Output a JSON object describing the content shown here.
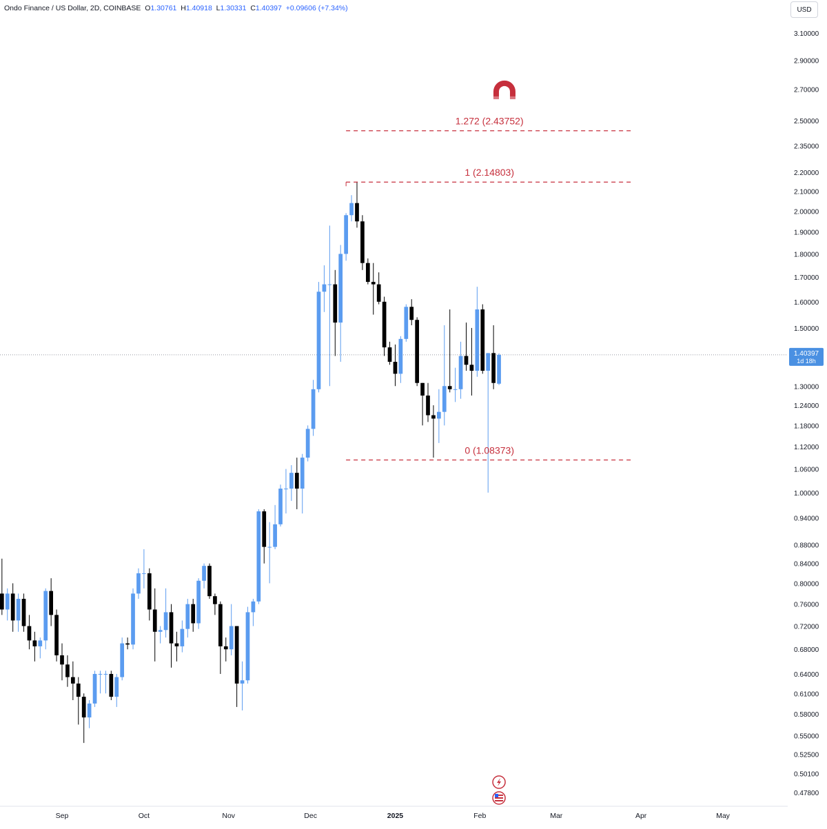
{
  "header": {
    "symbol": "Ondo Finance / US Dollar, 2D, COINBASE",
    "o_label": "O",
    "o_value": "1.30761",
    "h_label": "H",
    "h_value": "1.40918",
    "l_label": "L",
    "l_value": "1.30331",
    "c_label": "C",
    "c_value": "1.40397",
    "change": "+0.09606 (+7.34%)"
  },
  "currency": "USD",
  "colors": {
    "up": "#5b9cf0",
    "down": "#000000",
    "fib": "#c62f3c",
    "price_label_bg": "#4a90e2",
    "axis_text": "#131722",
    "crosshair": "#9598a1"
  },
  "icons": [
    "magnet-icon",
    "lightning-icon",
    "us-flag-icon"
  ],
  "chart_data": {
    "type": "candlestick",
    "scale": "log",
    "interval_days": 2,
    "y_ticks": [
      "3.10000",
      "2.90000",
      "2.70000",
      "2.50000",
      "2.35000",
      "2.20000",
      "2.10000",
      "2.00000",
      "1.90000",
      "1.80000",
      "1.70000",
      "1.60000",
      "1.50000",
      "1.30000",
      "1.24000",
      "1.18000",
      "1.12000",
      "1.06000",
      "1.00000",
      "0.94000",
      "0.88000",
      "0.84000",
      "0.80000",
      "0.76000",
      "0.72000",
      "0.68000",
      "0.64000",
      "0.61000",
      "0.58000",
      "0.55000",
      "0.52500",
      "0.50100",
      "0.47800"
    ],
    "x_ticks": [
      {
        "date": "2024-09-01",
        "label": "Sep"
      },
      {
        "date": "2024-10-01",
        "label": "Oct"
      },
      {
        "date": "2024-11-01",
        "label": "Nov"
      },
      {
        "date": "2024-12-01",
        "label": "Dec"
      },
      {
        "date": "2025-01-01",
        "label": "2025"
      },
      {
        "date": "2025-02-01",
        "label": "Feb"
      },
      {
        "date": "2025-03-01",
        "label": "Mar"
      },
      {
        "date": "2025-04-01",
        "label": "Apr"
      },
      {
        "date": "2025-05-01",
        "label": "May"
      }
    ],
    "current_price": {
      "label": "1.40397",
      "countdown": "1d 18h",
      "value": 1.40397
    },
    "fib_levels": [
      {
        "label": "1.272 (2.43752)",
        "value": 2.43752
      },
      {
        "label": "1 (2.14803)",
        "value": 2.14803
      },
      {
        "label": "0 (1.08373)",
        "value": 1.08373
      }
    ],
    "fib_start_date": "2024-12-14",
    "fib_end_date": "2025-03-29",
    "magnet_date": "2025-02-10",
    "magnet_value": 2.68,
    "candles": [
      {
        "d": "2024-08-10",
        "o": 0.78,
        "h": 0.85,
        "l": 0.74,
        "c": 0.75
      },
      {
        "d": "2024-08-12",
        "o": 0.75,
        "h": 0.79,
        "l": 0.73,
        "c": 0.78
      },
      {
        "d": "2024-08-14",
        "o": 0.78,
        "h": 0.8,
        "l": 0.71,
        "c": 0.73
      },
      {
        "d": "2024-08-16",
        "o": 0.73,
        "h": 0.78,
        "l": 0.71,
        "c": 0.77
      },
      {
        "d": "2024-08-18",
        "o": 0.77,
        "h": 0.78,
        "l": 0.71,
        "c": 0.72
      },
      {
        "d": "2024-08-20",
        "o": 0.72,
        "h": 0.74,
        "l": 0.68,
        "c": 0.695
      },
      {
        "d": "2024-08-22",
        "o": 0.695,
        "h": 0.71,
        "l": 0.66,
        "c": 0.685
      },
      {
        "d": "2024-08-24",
        "o": 0.685,
        "h": 0.7,
        "l": 0.665,
        "c": 0.695
      },
      {
        "d": "2024-08-26",
        "o": 0.695,
        "h": 0.79,
        "l": 0.68,
        "c": 0.785
      },
      {
        "d": "2024-08-28",
        "o": 0.785,
        "h": 0.81,
        "l": 0.72,
        "c": 0.74
      },
      {
        "d": "2024-08-30",
        "o": 0.74,
        "h": 0.75,
        "l": 0.66,
        "c": 0.67
      },
      {
        "d": "2024-09-01",
        "o": 0.67,
        "h": 0.69,
        "l": 0.63,
        "c": 0.655
      },
      {
        "d": "2024-09-03",
        "o": 0.655,
        "h": 0.67,
        "l": 0.62,
        "c": 0.635
      },
      {
        "d": "2024-09-05",
        "o": 0.635,
        "h": 0.66,
        "l": 0.6,
        "c": 0.625
      },
      {
        "d": "2024-09-07",
        "o": 0.625,
        "h": 0.635,
        "l": 0.565,
        "c": 0.605
      },
      {
        "d": "2024-09-09",
        "o": 0.605,
        "h": 0.61,
        "l": 0.54,
        "c": 0.575
      },
      {
        "d": "2024-09-11",
        "o": 0.575,
        "h": 0.6,
        "l": 0.56,
        "c": 0.595
      },
      {
        "d": "2024-09-13",
        "o": 0.595,
        "h": 0.645,
        "l": 0.59,
        "c": 0.64
      },
      {
        "d": "2024-09-15",
        "o": 0.64,
        "h": 0.645,
        "l": 0.61,
        "c": 0.64
      },
      {
        "d": "2024-09-17",
        "o": 0.64,
        "h": 0.645,
        "l": 0.61,
        "c": 0.64
      },
      {
        "d": "2024-09-19",
        "o": 0.64,
        "h": 0.645,
        "l": 0.6,
        "c": 0.605
      },
      {
        "d": "2024-09-21",
        "o": 0.605,
        "h": 0.64,
        "l": 0.59,
        "c": 0.635
      },
      {
        "d": "2024-09-23",
        "o": 0.635,
        "h": 0.7,
        "l": 0.63,
        "c": 0.69
      },
      {
        "d": "2024-09-25",
        "o": 0.69,
        "h": 0.7,
        "l": 0.68,
        "c": 0.688
      },
      {
        "d": "2024-09-27",
        "o": 0.688,
        "h": 0.79,
        "l": 0.68,
        "c": 0.78
      },
      {
        "d": "2024-09-29",
        "o": 0.78,
        "h": 0.83,
        "l": 0.77,
        "c": 0.82
      },
      {
        "d": "2024-10-01",
        "o": 0.82,
        "h": 0.87,
        "l": 0.79,
        "c": 0.82
      },
      {
        "d": "2024-10-03",
        "o": 0.82,
        "h": 0.83,
        "l": 0.73,
        "c": 0.75
      },
      {
        "d": "2024-10-05",
        "o": 0.75,
        "h": 0.79,
        "l": 0.66,
        "c": 0.71
      },
      {
        "d": "2024-10-07",
        "o": 0.71,
        "h": 0.72,
        "l": 0.69,
        "c": 0.713
      },
      {
        "d": "2024-10-09",
        "o": 0.713,
        "h": 0.79,
        "l": 0.7,
        "c": 0.745
      },
      {
        "d": "2024-10-11",
        "o": 0.745,
        "h": 0.76,
        "l": 0.65,
        "c": 0.69
      },
      {
        "d": "2024-10-13",
        "o": 0.69,
        "h": 0.71,
        "l": 0.66,
        "c": 0.685
      },
      {
        "d": "2024-10-15",
        "o": 0.685,
        "h": 0.73,
        "l": 0.675,
        "c": 0.715
      },
      {
        "d": "2024-10-17",
        "o": 0.715,
        "h": 0.77,
        "l": 0.7,
        "c": 0.76
      },
      {
        "d": "2024-10-19",
        "o": 0.76,
        "h": 0.77,
        "l": 0.71,
        "c": 0.725
      },
      {
        "d": "2024-10-21",
        "o": 0.725,
        "h": 0.81,
        "l": 0.715,
        "c": 0.805
      },
      {
        "d": "2024-10-23",
        "o": 0.805,
        "h": 0.84,
        "l": 0.79,
        "c": 0.835
      },
      {
        "d": "2024-10-25",
        "o": 0.835,
        "h": 0.84,
        "l": 0.77,
        "c": 0.775
      },
      {
        "d": "2024-10-27",
        "o": 0.775,
        "h": 0.78,
        "l": 0.74,
        "c": 0.76
      },
      {
        "d": "2024-10-29",
        "o": 0.76,
        "h": 0.765,
        "l": 0.64,
        "c": 0.685
      },
      {
        "d": "2024-10-31",
        "o": 0.685,
        "h": 0.7,
        "l": 0.66,
        "c": 0.68
      },
      {
        "d": "2024-11-02",
        "o": 0.68,
        "h": 0.76,
        "l": 0.67,
        "c": 0.72
      },
      {
        "d": "2024-11-04",
        "o": 0.72,
        "h": 0.72,
        "l": 0.59,
        "c": 0.625
      },
      {
        "d": "2024-11-06",
        "o": 0.625,
        "h": 0.66,
        "l": 0.585,
        "c": 0.63
      },
      {
        "d": "2024-11-08",
        "o": 0.63,
        "h": 0.755,
        "l": 0.625,
        "c": 0.745
      },
      {
        "d": "2024-11-10",
        "o": 0.745,
        "h": 0.77,
        "l": 0.72,
        "c": 0.765
      },
      {
        "d": "2024-11-12",
        "o": 0.765,
        "h": 0.96,
        "l": 0.76,
        "c": 0.955
      },
      {
        "d": "2024-11-14",
        "o": 0.955,
        "h": 0.96,
        "l": 0.84,
        "c": 0.875
      },
      {
        "d": "2024-11-16",
        "o": 0.875,
        "h": 0.93,
        "l": 0.8,
        "c": 0.875
      },
      {
        "d": "2024-11-18",
        "o": 0.875,
        "h": 0.97,
        "l": 0.87,
        "c": 0.925
      },
      {
        "d": "2024-11-20",
        "o": 0.925,
        "h": 1.02,
        "l": 0.92,
        "c": 1.01
      },
      {
        "d": "2024-11-22",
        "o": 1.01,
        "h": 1.06,
        "l": 0.95,
        "c": 1.01
      },
      {
        "d": "2024-11-24",
        "o": 1.01,
        "h": 1.07,
        "l": 0.98,
        "c": 1.05
      },
      {
        "d": "2024-11-26",
        "o": 1.05,
        "h": 1.09,
        "l": 0.96,
        "c": 1.01
      },
      {
        "d": "2024-11-28",
        "o": 1.01,
        "h": 1.1,
        "l": 0.95,
        "c": 1.09
      },
      {
        "d": "2024-11-30",
        "o": 1.09,
        "h": 1.18,
        "l": 1.08,
        "c": 1.17
      },
      {
        "d": "2024-12-02",
        "o": 1.17,
        "h": 1.32,
        "l": 1.15,
        "c": 1.29
      },
      {
        "d": "2024-12-04",
        "o": 1.29,
        "h": 1.68,
        "l": 1.28,
        "c": 1.64
      },
      {
        "d": "2024-12-06",
        "o": 1.64,
        "h": 1.75,
        "l": 1.56,
        "c": 1.67
      },
      {
        "d": "2024-12-08",
        "o": 1.67,
        "h": 1.93,
        "l": 1.3,
        "c": 1.67
      },
      {
        "d": "2024-12-10",
        "o": 1.67,
        "h": 1.73,
        "l": 1.4,
        "c": 1.52
      },
      {
        "d": "2024-12-12",
        "o": 1.52,
        "h": 1.84,
        "l": 1.38,
        "c": 1.8
      },
      {
        "d": "2024-12-14",
        "o": 1.8,
        "h": 1.99,
        "l": 1.77,
        "c": 1.98
      },
      {
        "d": "2024-12-16",
        "o": 1.98,
        "h": 2.08,
        "l": 1.95,
        "c": 2.04
      },
      {
        "d": "2024-12-18",
        "o": 2.04,
        "h": 2.15,
        "l": 1.92,
        "c": 1.95
      },
      {
        "d": "2024-12-20",
        "o": 1.95,
        "h": 1.98,
        "l": 1.73,
        "c": 1.76
      },
      {
        "d": "2024-12-22",
        "o": 1.76,
        "h": 1.78,
        "l": 1.67,
        "c": 1.68
      },
      {
        "d": "2024-12-24",
        "o": 1.68,
        "h": 1.76,
        "l": 1.55,
        "c": 1.67
      },
      {
        "d": "2024-12-26",
        "o": 1.67,
        "h": 1.72,
        "l": 1.59,
        "c": 1.6
      },
      {
        "d": "2024-12-28",
        "o": 1.6,
        "h": 1.62,
        "l": 1.4,
        "c": 1.43
      },
      {
        "d": "2024-12-30",
        "o": 1.43,
        "h": 1.45,
        "l": 1.37,
        "c": 1.38
      },
      {
        "d": "2025-01-01",
        "o": 1.38,
        "h": 1.44,
        "l": 1.3,
        "c": 1.34
      },
      {
        "d": "2025-01-03",
        "o": 1.34,
        "h": 1.47,
        "l": 1.31,
        "c": 1.46
      },
      {
        "d": "2025-01-05",
        "o": 1.46,
        "h": 1.59,
        "l": 1.45,
        "c": 1.58
      },
      {
        "d": "2025-01-07",
        "o": 1.58,
        "h": 1.61,
        "l": 1.51,
        "c": 1.53
      },
      {
        "d": "2025-01-09",
        "o": 1.53,
        "h": 1.54,
        "l": 1.3,
        "c": 1.31
      },
      {
        "d": "2025-01-11",
        "o": 1.31,
        "h": 1.31,
        "l": 1.18,
        "c": 1.27
      },
      {
        "d": "2025-01-13",
        "o": 1.27,
        "h": 1.31,
        "l": 1.19,
        "c": 1.21
      },
      {
        "d": "2025-01-15",
        "o": 1.21,
        "h": 1.24,
        "l": 1.09,
        "c": 1.2
      },
      {
        "d": "2025-01-17",
        "o": 1.2,
        "h": 1.29,
        "l": 1.13,
        "c": 1.22
      },
      {
        "d": "2025-01-19",
        "o": 1.22,
        "h": 1.51,
        "l": 1.18,
        "c": 1.3
      },
      {
        "d": "2025-01-21",
        "o": 1.3,
        "h": 1.57,
        "l": 1.28,
        "c": 1.29
      },
      {
        "d": "2025-01-23",
        "o": 1.29,
        "h": 1.36,
        "l": 1.25,
        "c": 1.29
      },
      {
        "d": "2025-01-25",
        "o": 1.29,
        "h": 1.45,
        "l": 1.26,
        "c": 1.4
      },
      {
        "d": "2025-01-27",
        "o": 1.4,
        "h": 1.52,
        "l": 1.35,
        "c": 1.37
      },
      {
        "d": "2025-01-29",
        "o": 1.37,
        "h": 1.5,
        "l": 1.27,
        "c": 1.35
      },
      {
        "d": "2025-01-31",
        "o": 1.35,
        "h": 1.66,
        "l": 1.33,
        "c": 1.57
      },
      {
        "d": "2025-02-02",
        "o": 1.57,
        "h": 1.59,
        "l": 1.34,
        "c": 1.35
      },
      {
        "d": "2025-02-04",
        "o": 1.35,
        "h": 1.41,
        "l": 1.0,
        "c": 1.41
      },
      {
        "d": "2025-02-06",
        "o": 1.41,
        "h": 1.51,
        "l": 1.29,
        "c": 1.31
      },
      {
        "d": "2025-02-08",
        "o": 1.30761,
        "h": 1.40918,
        "l": 1.30331,
        "c": 1.40397
      }
    ]
  }
}
